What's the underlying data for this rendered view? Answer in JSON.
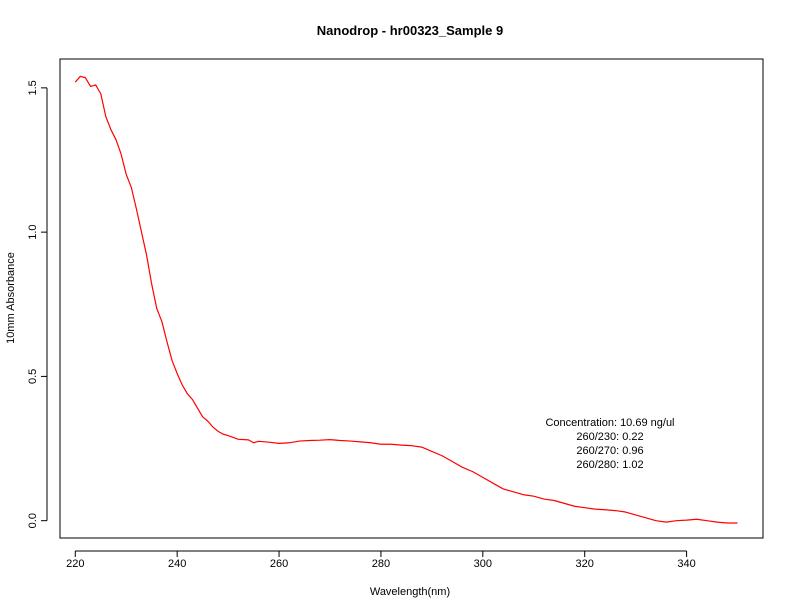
{
  "chart_data": {
    "type": "line",
    "title": "Nanodrop - hr00323_Sample 9",
    "xlabel": "Wavelength(nm)",
    "ylabel": "10mm Absorbance",
    "xlim": [
      217,
      355
    ],
    "ylim": [
      -0.06,
      1.6
    ],
    "xticks": [
      220,
      240,
      260,
      280,
      300,
      320,
      340
    ],
    "yticks": [
      0.0,
      0.5,
      1.0,
      1.5
    ],
    "xtick_labels": [
      "220",
      "240",
      "260",
      "280",
      "300",
      "320",
      "340"
    ],
    "ytick_labels": [
      "0.0",
      "0.5",
      "1.0",
      "1.5"
    ],
    "grid": false,
    "legend": "none",
    "series": [
      {
        "color": "#ff0000",
        "x": [
          220,
          221,
          222,
          223,
          224,
          225,
          226,
          227,
          228,
          229,
          230,
          231,
          232,
          233,
          234,
          235,
          236,
          237,
          238,
          239,
          240,
          241,
          242,
          243,
          244,
          245,
          246,
          247,
          248,
          249,
          250,
          252,
          254,
          255,
          256,
          258,
          260,
          262,
          264,
          266,
          268,
          270,
          272,
          274,
          276,
          278,
          280,
          282,
          284,
          286,
          288,
          290,
          292,
          294,
          296,
          298,
          300,
          302,
          304,
          306,
          308,
          310,
          312,
          314,
          316,
          318,
          320,
          322,
          324,
          326,
          328,
          330,
          332,
          334,
          336,
          338,
          340,
          342,
          344,
          346,
          348,
          350
        ],
        "y": [
          1.52,
          1.54,
          1.535,
          1.505,
          1.51,
          1.48,
          1.4,
          1.355,
          1.32,
          1.27,
          1.2,
          1.155,
          1.08,
          1.0,
          0.92,
          0.82,
          0.735,
          0.69,
          0.62,
          0.555,
          0.51,
          0.47,
          0.44,
          0.42,
          0.39,
          0.36,
          0.345,
          0.325,
          0.31,
          0.3,
          0.295,
          0.282,
          0.28,
          0.27,
          0.275,
          0.272,
          0.268,
          0.27,
          0.276,
          0.278,
          0.279,
          0.281,
          0.278,
          0.276,
          0.273,
          0.27,
          0.265,
          0.265,
          0.262,
          0.26,
          0.255,
          0.24,
          0.225,
          0.205,
          0.185,
          0.17,
          0.15,
          0.13,
          0.11,
          0.1,
          0.09,
          0.085,
          0.075,
          0.07,
          0.06,
          0.05,
          0.045,
          0.04,
          0.038,
          0.035,
          0.03,
          0.02,
          0.01,
          0.0,
          -0.005,
          0.0,
          0.002,
          0.005,
          0.0,
          -0.005,
          -0.008,
          -0.008
        ]
      }
    ],
    "annotations": [
      "Concentration: 10.69 ng/ul",
      "260/230: 0.22",
      "260/270: 0.96",
      "260/280: 1.02"
    ]
  }
}
